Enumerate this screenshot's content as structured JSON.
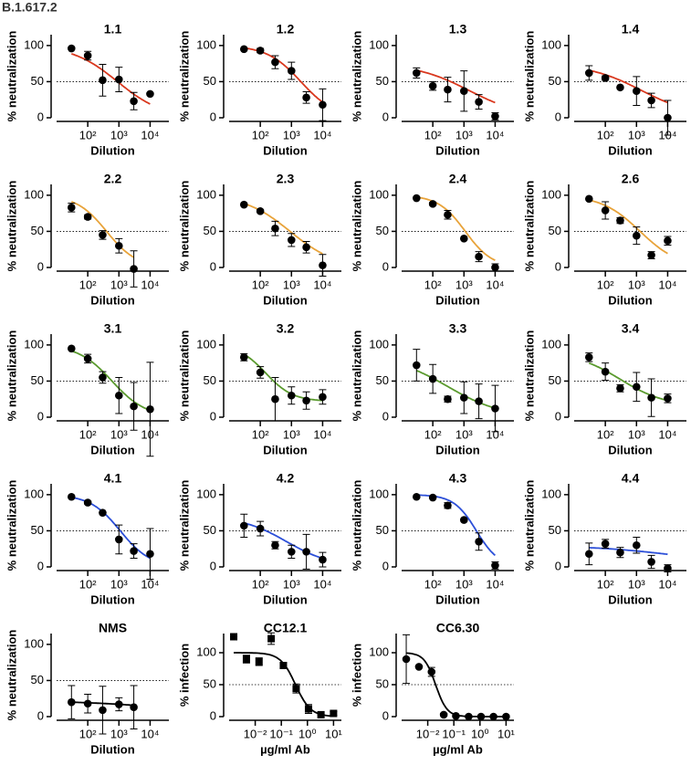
{
  "title": "B.1.617.2",
  "chart_data": [
    {
      "type": "scatter",
      "title": "1.1",
      "ylabel": "% neutralization",
      "xlabel": "Dilution",
      "xscale": "log",
      "x": [
        30,
        100,
        300,
        1000,
        3000,
        10000
      ],
      "values": [
        96,
        86,
        52,
        53,
        23,
        33
      ],
      "errors": [
        0,
        6,
        22,
        17,
        12,
        0
      ],
      "color": "#d9381e",
      "marker": "circle",
      "fit": {
        "top": 100,
        "bottom": 0,
        "ic50": 900,
        "hill": 0.6
      },
      "hline": 50,
      "xlim": [
        10,
        40000
      ],
      "ylim": [
        0,
        115
      ],
      "xticks": [
        {
          "value": 100,
          "label": "10²"
        },
        {
          "value": 1000,
          "label": "10³"
        },
        {
          "value": 10000,
          "label": "10⁴"
        }
      ],
      "yticks": [
        0,
        50,
        100
      ]
    },
    {
      "type": "scatter",
      "title": "1.2",
      "ylabel": "% neutralization",
      "xlabel": "Dilution",
      "xscale": "log",
      "x": [
        30,
        100,
        300,
        1000,
        3000,
        10000
      ],
      "values": [
        95,
        93,
        77,
        65,
        28,
        18
      ],
      "errors": [
        0,
        3,
        9,
        12,
        8,
        22
      ],
      "color": "#d9381e",
      "marker": "circle",
      "fit": {
        "top": 100,
        "bottom": 0,
        "ic50": 2000,
        "hill": 0.8
      },
      "hline": 50,
      "xlim": [
        10,
        40000
      ],
      "ylim": [
        0,
        115
      ],
      "xticks": [
        {
          "value": 100,
          "label": "10²"
        },
        {
          "value": 1000,
          "label": "10³"
        },
        {
          "value": 10000,
          "label": "10⁴"
        }
      ],
      "yticks": [
        0,
        50,
        100
      ]
    },
    {
      "type": "scatter",
      "title": "1.3",
      "ylabel": "% neutralization",
      "xlabel": "Dilution",
      "xscale": "log",
      "x": [
        30,
        100,
        300,
        1000,
        3000,
        10000
      ],
      "values": [
        62,
        44,
        39,
        37,
        22,
        2
      ],
      "errors": [
        7,
        6,
        17,
        28,
        10,
        5
      ],
      "color": "#d9381e",
      "marker": "circle",
      "fit": {
        "top": 75,
        "bottom": 0,
        "ic50": 1500,
        "hill": 0.5
      },
      "hline": 50,
      "xlim": [
        10,
        40000
      ],
      "ylim": [
        0,
        115
      ],
      "xticks": [
        {
          "value": 100,
          "label": "10²"
        },
        {
          "value": 1000,
          "label": "10³"
        },
        {
          "value": 10000,
          "label": "10⁴"
        }
      ],
      "yticks": [
        0,
        50,
        100
      ]
    },
    {
      "type": "scatter",
      "title": "1.4",
      "ylabel": "% neutralization",
      "xlabel": "Dilution",
      "xscale": "log",
      "x": [
        30,
        100,
        300,
        1000,
        3000,
        10000
      ],
      "values": [
        62,
        55,
        42,
        37,
        24,
        0
      ],
      "errors": [
        10,
        3,
        0,
        20,
        10,
        24
      ],
      "color": "#d9381e",
      "marker": "circle",
      "fit": {
        "top": 75,
        "bottom": 0,
        "ic50": 1500,
        "hill": 0.5
      },
      "hline": 50,
      "xlim": [
        10,
        40000
      ],
      "ylim": [
        0,
        115
      ],
      "xticks": [
        {
          "value": 100,
          "label": "10²"
        },
        {
          "value": 1000,
          "label": "10³"
        },
        {
          "value": 10000,
          "label": "10⁴"
        }
      ],
      "yticks": [
        0,
        50,
        100
      ]
    },
    {
      "type": "scatter",
      "title": "2.2",
      "ylabel": "% neutralization",
      "xlabel": "Dilution",
      "xscale": "log",
      "x": [
        30,
        100,
        300,
        1000,
        3000,
        10000
      ],
      "values": [
        83,
        70,
        45,
        30,
        -2,
        null
      ],
      "errors": [
        6,
        3,
        6,
        10,
        25,
        null
      ],
      "color": "#e8a33a",
      "marker": "circle",
      "fit": {
        "top": 100,
        "bottom": 0,
        "ic50": 400,
        "hill": 0.9
      },
      "hline": 50,
      "xlim": [
        10,
        40000
      ],
      "ylim": [
        0,
        115
      ],
      "xticks": [
        {
          "value": 100,
          "label": "10²"
        },
        {
          "value": 1000,
          "label": "10³"
        },
        {
          "value": 10000,
          "label": "10⁴"
        }
      ],
      "yticks": [
        0,
        50,
        100
      ]
    },
    {
      "type": "scatter",
      "title": "2.3",
      "ylabel": "% neutralization",
      "xlabel": "Dilution",
      "xscale": "log",
      "x": [
        30,
        100,
        300,
        1000,
        3000,
        10000
      ],
      "values": [
        87,
        78,
        54,
        38,
        28,
        3
      ],
      "errors": [
        0,
        2,
        10,
        9,
        8,
        15
      ],
      "color": "#e8a33a",
      "marker": "circle",
      "fit": {
        "top": 100,
        "bottom": 0,
        "ic50": 900,
        "hill": 0.6
      },
      "hline": 50,
      "xlim": [
        10,
        40000
      ],
      "ylim": [
        0,
        115
      ],
      "xticks": [
        {
          "value": 100,
          "label": "10²"
        },
        {
          "value": 1000,
          "label": "10³"
        },
        {
          "value": 10000,
          "label": "10⁴"
        }
      ],
      "yticks": [
        0,
        50,
        100
      ]
    },
    {
      "type": "scatter",
      "title": "2.4",
      "ylabel": "% neutralization",
      "xlabel": "Dilution",
      "xscale": "log",
      "x": [
        30,
        100,
        300,
        1000,
        3000,
        10000
      ],
      "values": [
        96,
        88,
        73,
        40,
        15,
        0
      ],
      "errors": [
        0,
        2,
        6,
        0,
        7,
        5
      ],
      "color": "#e8a33a",
      "marker": "circle",
      "fit": {
        "top": 100,
        "bottom": 0,
        "ic50": 1100,
        "hill": 1.0
      },
      "hline": 50,
      "xlim": [
        10,
        40000
      ],
      "ylim": [
        0,
        115
      ],
      "xticks": [
        {
          "value": 100,
          "label": "10²"
        },
        {
          "value": 1000,
          "label": "10³"
        },
        {
          "value": 10000,
          "label": "10⁴"
        }
      ],
      "yticks": [
        0,
        50,
        100
      ]
    },
    {
      "type": "scatter",
      "title": "2.6",
      "ylabel": "% neutralization",
      "xlabel": "Dilution",
      "xscale": "log",
      "x": [
        30,
        100,
        300,
        1000,
        3000,
        10000
      ],
      "values": [
        95,
        79,
        65,
        44,
        17,
        37
      ],
      "errors": [
        0,
        12,
        4,
        12,
        5,
        6
      ],
      "color": "#e8a33a",
      "marker": "circle",
      "fit": {
        "top": 100,
        "bottom": 0,
        "ic50": 1300,
        "hill": 0.7
      },
      "hline": 50,
      "xlim": [
        10,
        40000
      ],
      "ylim": [
        0,
        115
      ],
      "xticks": [
        {
          "value": 100,
          "label": "10²"
        },
        {
          "value": 1000,
          "label": "10³"
        },
        {
          "value": 10000,
          "label": "10⁴"
        }
      ],
      "yticks": [
        0,
        50,
        100
      ]
    },
    {
      "type": "scatter",
      "title": "3.1",
      "ylabel": "% neutralization",
      "xlabel": "Dilution",
      "xscale": "log",
      "x": [
        30,
        100,
        300,
        1000,
        3000,
        10000
      ],
      "values": [
        95,
        81,
        55,
        30,
        15,
        11
      ],
      "errors": [
        0,
        6,
        8,
        25,
        33,
        65
      ],
      "color": "#5a9a2e",
      "marker": "circle",
      "fit": {
        "top": 100,
        "bottom": 0,
        "ic50": 600,
        "hill": 0.8
      },
      "hline": 50,
      "xlim": [
        10,
        40000
      ],
      "ylim": [
        0,
        115
      ],
      "xticks": [
        {
          "value": 100,
          "label": "10²"
        },
        {
          "value": 1000,
          "label": "10³"
        },
        {
          "value": 10000,
          "label": "10⁴"
        }
      ],
      "yticks": [
        0,
        50,
        100
      ]
    },
    {
      "type": "scatter",
      "title": "3.2",
      "ylabel": "% neutralization",
      "xlabel": "Dilution",
      "xscale": "log",
      "x": [
        30,
        100,
        300,
        1000,
        3000,
        10000
      ],
      "values": [
        83,
        62,
        25,
        30,
        23,
        28
      ],
      "errors": [
        5,
        8,
        30,
        12,
        12,
        10
      ],
      "color": "#5a9a2e",
      "marker": "circle",
      "fit": {
        "top": 100,
        "bottom": 22,
        "ic50": 150,
        "hill": 1.0
      },
      "hline": 50,
      "xlim": [
        10,
        40000
      ],
      "ylim": [
        0,
        115
      ],
      "xticks": [
        {
          "value": 100,
          "label": "10²"
        },
        {
          "value": 1000,
          "label": "10³"
        },
        {
          "value": 10000,
          "label": "10⁴"
        }
      ],
      "yticks": [
        0,
        50,
        100
      ]
    },
    {
      "type": "scatter",
      "title": "3.3",
      "ylabel": "% neutralization",
      "xlabel": "Dilution",
      "xscale": "log",
      "x": [
        30,
        100,
        300,
        1000,
        3000,
        10000
      ],
      "values": [
        72,
        53,
        25,
        27,
        22,
        12
      ],
      "errors": [
        22,
        20,
        4,
        22,
        24,
        32
      ],
      "color": "#5a9a2e",
      "marker": "circle",
      "fit": {
        "top": 85,
        "bottom": 0,
        "ic50": 300,
        "hill": 0.5
      },
      "hline": 50,
      "xlim": [
        10,
        40000
      ],
      "ylim": [
        0,
        115
      ],
      "xticks": [
        {
          "value": 100,
          "label": "10²"
        },
        {
          "value": 1000,
          "label": "10³"
        },
        {
          "value": 10000,
          "label": "10⁴"
        }
      ],
      "yticks": [
        0,
        50,
        100
      ]
    },
    {
      "type": "scatter",
      "title": "3.4",
      "ylabel": "% neutralization",
      "xlabel": "Dilution",
      "xscale": "log",
      "x": [
        30,
        100,
        300,
        1000,
        3000,
        10000
      ],
      "values": [
        83,
        63,
        40,
        42,
        27,
        26
      ],
      "errors": [
        6,
        12,
        5,
        20,
        26,
        6
      ],
      "color": "#5a9a2e",
      "marker": "circle",
      "fit": {
        "top": 90,
        "bottom": 15,
        "ic50": 300,
        "hill": 0.6
      },
      "hline": 50,
      "xlim": [
        10,
        40000
      ],
      "ylim": [
        0,
        115
      ],
      "xticks": [
        {
          "value": 100,
          "label": "10²"
        },
        {
          "value": 1000,
          "label": "10³"
        },
        {
          "value": 10000,
          "label": "10⁴"
        }
      ],
      "yticks": [
        0,
        50,
        100
      ]
    },
    {
      "type": "scatter",
      "title": "4.1",
      "ylabel": "% neutralization",
      "xlabel": "Dilution",
      "xscale": "log",
      "x": [
        30,
        100,
        300,
        1000,
        3000,
        10000
      ],
      "values": [
        97,
        89,
        75,
        38,
        22,
        18
      ],
      "errors": [
        0,
        2,
        0,
        20,
        10,
        35
      ],
      "color": "#2c4fd8",
      "marker": "circle",
      "fit": {
        "top": 100,
        "bottom": 0,
        "ic50": 1100,
        "hill": 0.9
      },
      "hline": 50,
      "xlim": [
        10,
        40000
      ],
      "ylim": [
        0,
        115
      ],
      "xticks": [
        {
          "value": 100,
          "label": "10²"
        },
        {
          "value": 1000,
          "label": "10³"
        },
        {
          "value": 10000,
          "label": "10⁴"
        }
      ],
      "yticks": [
        0,
        50,
        100
      ]
    },
    {
      "type": "scatter",
      "title": "4.2",
      "ylabel": "% neutralization",
      "xlabel": "Dilution",
      "xscale": "log",
      "x": [
        30,
        100,
        300,
        1000,
        3000,
        10000
      ],
      "values": [
        57,
        53,
        30,
        21,
        21,
        10
      ],
      "errors": [
        16,
        10,
        5,
        9,
        24,
        10
      ],
      "color": "#2c4fd8",
      "marker": "circle",
      "fit": {
        "top": 70,
        "bottom": 0,
        "ic50": 700,
        "hill": 0.6
      },
      "hline": 50,
      "xlim": [
        10,
        40000
      ],
      "ylim": [
        0,
        115
      ],
      "xticks": [
        {
          "value": 100,
          "label": "10²"
        },
        {
          "value": 1000,
          "label": "10³"
        },
        {
          "value": 10000,
          "label": "10⁴"
        }
      ],
      "yticks": [
        0,
        50,
        100
      ]
    },
    {
      "type": "scatter",
      "title": "4.3",
      "ylabel": "% neutralization",
      "xlabel": "Dilution",
      "xscale": "log",
      "x": [
        30,
        100,
        300,
        1000,
        3000,
        10000
      ],
      "values": [
        97,
        96,
        85,
        65,
        35,
        2
      ],
      "errors": [
        0,
        0,
        4,
        0,
        12,
        5
      ],
      "color": "#2c4fd8",
      "marker": "circle",
      "fit": {
        "top": 100,
        "bottom": 0,
        "ic50": 2500,
        "hill": 1.2
      },
      "hline": 50,
      "xlim": [
        10,
        40000
      ],
      "ylim": [
        0,
        115
      ],
      "xticks": [
        {
          "value": 100,
          "label": "10²"
        },
        {
          "value": 1000,
          "label": "10³"
        },
        {
          "value": 10000,
          "label": "10⁴"
        }
      ],
      "yticks": [
        0,
        50,
        100
      ]
    },
    {
      "type": "scatter",
      "title": "4.4",
      "ylabel": "% neutralization",
      "xlabel": "Dilution",
      "xscale": "log",
      "x": [
        30,
        100,
        300,
        1000,
        3000,
        10000
      ],
      "values": [
        18,
        32,
        20,
        30,
        7,
        -2
      ],
      "errors": [
        15,
        6,
        7,
        11,
        9,
        5
      ],
      "color": "#2c4fd8",
      "marker": "circle",
      "fit": {
        "top": 30,
        "bottom": 0,
        "ic50": 30000,
        "hill": 0.3
      },
      "hline": 50,
      "xlim": [
        10,
        40000
      ],
      "ylim": [
        0,
        115
      ],
      "xticks": [
        {
          "value": 100,
          "label": "10²"
        },
        {
          "value": 1000,
          "label": "10³"
        },
        {
          "value": 10000,
          "label": "10⁴"
        }
      ],
      "yticks": [
        0,
        50,
        100
      ]
    },
    {
      "type": "scatter",
      "title": "NMS",
      "ylabel": "% neutralization",
      "xlabel": "Dilution",
      "xscale": "log",
      "x": [
        30,
        100,
        300,
        1000,
        3000,
        10000
      ],
      "values": [
        20,
        18,
        9,
        17,
        13,
        null
      ],
      "errors": [
        23,
        13,
        33,
        9,
        30,
        null
      ],
      "color": "#000000",
      "marker": "circle",
      "fit": {
        "top": 22,
        "bottom": 0,
        "ic50": 60000,
        "hill": 0.3
      },
      "hline": 50,
      "xlim": [
        10,
        40000
      ],
      "ylim": [
        0,
        115
      ],
      "xticks": [
        {
          "value": 100,
          "label": "10²"
        },
        {
          "value": 1000,
          "label": "10³"
        },
        {
          "value": 10000,
          "label": "10⁴"
        }
      ],
      "yticks": [
        0,
        50,
        100
      ]
    },
    {
      "type": "scatter",
      "title": "CC12.1",
      "ylabel": "% infection",
      "xlabel": "µg/ml Ab",
      "xscale": "log",
      "x": [
        0.0015,
        0.0046,
        0.014,
        0.041,
        0.12,
        0.37,
        1.1,
        3.3,
        10
      ],
      "values": [
        125,
        90,
        86,
        122,
        80,
        44,
        12,
        3,
        5
      ],
      "errors": [
        0,
        6,
        6,
        9,
        4,
        7,
        7,
        0,
        3
      ],
      "color": "#000000",
      "marker": "square",
      "fit": {
        "top": 100,
        "bottom": 0,
        "ic50": 0.35,
        "hill": 1.5
      },
      "hline": 50,
      "xlim": [
        0.001,
        20
      ],
      "ylim": [
        0,
        130
      ],
      "xticks": [
        {
          "value": 0.01,
          "label": "10⁻²"
        },
        {
          "value": 0.1,
          "label": "10⁻¹"
        },
        {
          "value": 1,
          "label": "10⁰"
        },
        {
          "value": 10,
          "label": "10¹"
        }
      ],
      "yticks": [
        0,
        50,
        100
      ]
    },
    {
      "type": "scatter",
      "title": "CC6.30",
      "ylabel": "% infection",
      "xlabel": "µg/ml Ab",
      "xscale": "log",
      "x": [
        0.0015,
        0.0046,
        0.014,
        0.041,
        0.12,
        0.37,
        1.1,
        3.3,
        10
      ],
      "values": [
        90,
        78,
        70,
        3,
        1,
        0,
        0,
        0,
        0
      ],
      "errors": [
        38,
        0,
        7,
        2,
        0,
        0,
        0,
        0,
        0
      ],
      "color": "#000000",
      "marker": "circle",
      "fit": {
        "top": 100,
        "bottom": 0,
        "ic50": 0.02,
        "hill": 2
      },
      "hline": 50,
      "xlim": [
        0.001,
        20
      ],
      "ylim": [
        0,
        130
      ],
      "xticks": [
        {
          "value": 0.01,
          "label": "10⁻²"
        },
        {
          "value": 0.1,
          "label": "10⁻¹"
        },
        {
          "value": 1,
          "label": "10⁰"
        },
        {
          "value": 10,
          "label": "10¹"
        }
      ],
      "yticks": [
        0,
        50,
        100
      ]
    }
  ]
}
